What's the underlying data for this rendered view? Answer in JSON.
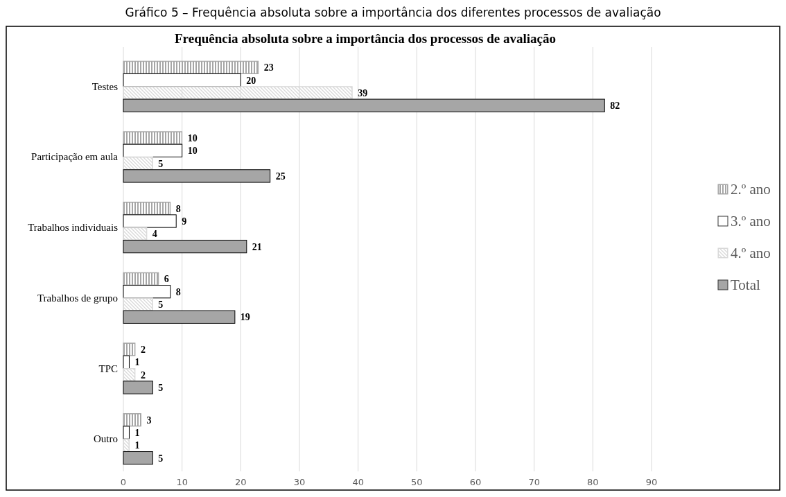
{
  "chart_data": {
    "type": "bar",
    "orientation": "horizontal",
    "title": "Frequência absoluta sobre a importância dos processos de avaliação",
    "annotations": [
      "Gráfico 5 – Frequência absoluta sobre a importância dos diferentes processos de avaliação"
    ],
    "categories": [
      "Testes",
      "Participação em aula",
      "Trabalhos individuais",
      "Trabalhos de grupo",
      "TPC",
      "Outro"
    ],
    "series": [
      {
        "name": "2.º ano",
        "color": "#a6a6a6",
        "values": [
          23,
          10,
          8,
          6,
          2,
          3
        ]
      },
      {
        "name": "3.º ano",
        "color": "#ffffff",
        "values": [
          20,
          10,
          9,
          8,
          1,
          1
        ]
      },
      {
        "name": "4.º ano",
        "color": "#d9d9d9",
        "values": [
          39,
          5,
          4,
          5,
          2,
          1
        ]
      },
      {
        "name": "Total",
        "color": "#a6a6a6",
        "values": [
          82,
          25,
          21,
          19,
          5,
          5
        ]
      }
    ],
    "xlim": [
      0,
      90
    ],
    "xticks": [
      0,
      10,
      20,
      30,
      40,
      50,
      60,
      70,
      80,
      90
    ],
    "grid": "x",
    "legend": "right",
    "data_labels": true
  }
}
